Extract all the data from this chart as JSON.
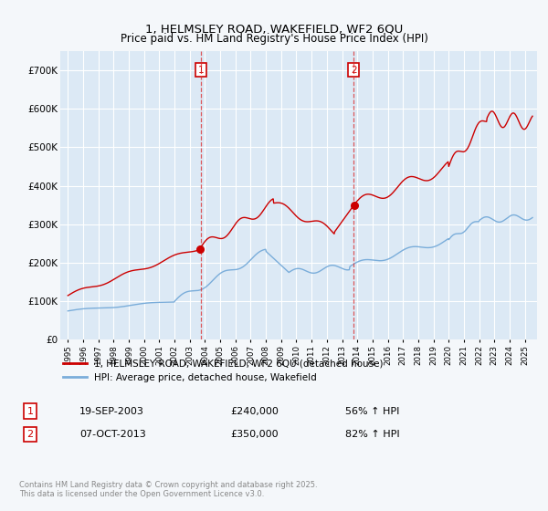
{
  "title_line1": "1, HELMSLEY ROAD, WAKEFIELD, WF2 6QU",
  "title_line2": "Price paid vs. HM Land Registry's House Price Index (HPI)",
  "bg_color": "#f4f7fa",
  "plot_bg_color": "#dce9f5",
  "grid_color": "#ffffff",
  "red_line_color": "#cc0000",
  "blue_line_color": "#7aadda",
  "transaction1_date": "19-SEP-2003",
  "transaction1_price": 240000,
  "transaction1_hpi": "56% ↑ HPI",
  "transaction1_year": 2003.72,
  "transaction2_date": "07-OCT-2013",
  "transaction2_price": 350000,
  "transaction2_hpi": "82% ↑ HPI",
  "transaction2_year": 2013.77,
  "legend_line1": "1, HELMSLEY ROAD, WAKEFIELD, WF2 6QU (detached house)",
  "legend_line2": "HPI: Average price, detached house, Wakefield",
  "copyright_text": "Contains HM Land Registry data © Crown copyright and database right 2025.\nThis data is licensed under the Open Government Licence v3.0.",
  "ylim_max": 750000,
  "yticks": [
    0,
    100000,
    200000,
    300000,
    400000,
    500000,
    600000,
    700000
  ],
  "ytick_labels": [
    "£0",
    "£100K",
    "£200K",
    "£300K",
    "£400K",
    "£500K",
    "£600K",
    "£700K"
  ]
}
